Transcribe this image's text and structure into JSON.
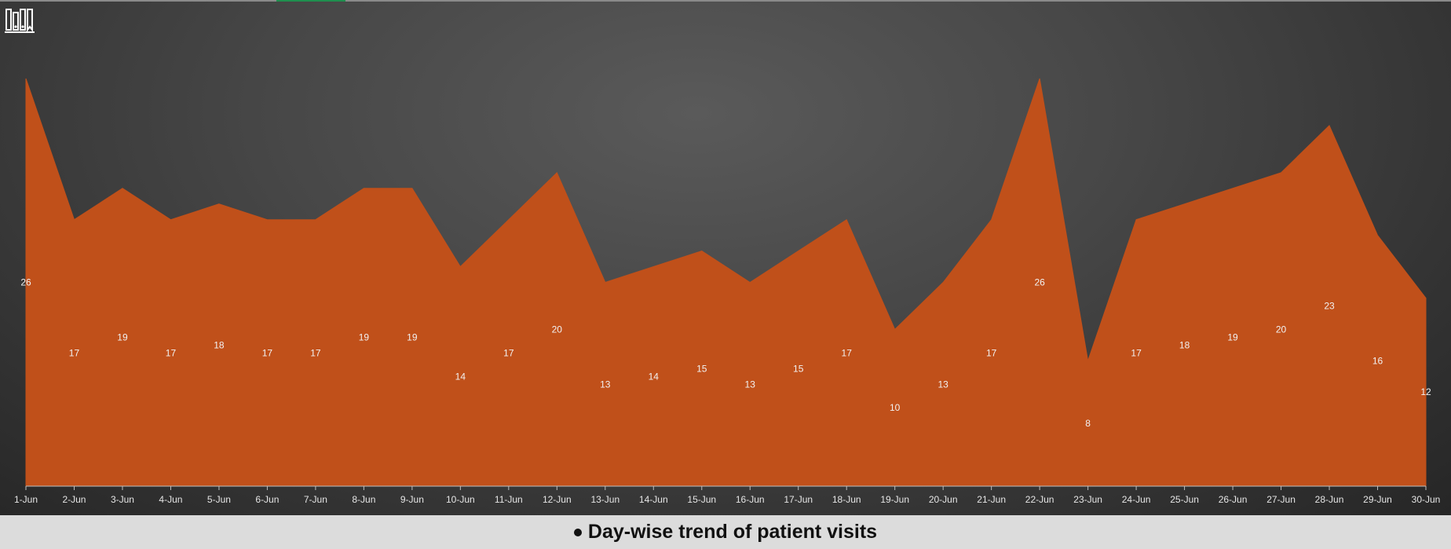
{
  "colors": {
    "area_fill": "#c0501a",
    "area_stroke": "#c0501a",
    "logo": "#ffffff",
    "accent_strip": "#1f8f4e"
  },
  "logo": {
    "icon": "books-icon"
  },
  "caption": "Day-wise trend of patient visits",
  "chart_data": {
    "type": "area",
    "title": "",
    "xlabel": "",
    "ylabel": "",
    "ylim": [
      0,
      26
    ],
    "grid": false,
    "legend": "none",
    "categories": [
      "1-Jun",
      "2-Jun",
      "3-Jun",
      "4-Jun",
      "5-Jun",
      "6-Jun",
      "7-Jun",
      "8-Jun",
      "9-Jun",
      "10-Jun",
      "11-Jun",
      "12-Jun",
      "13-Jun",
      "14-Jun",
      "15-Jun",
      "16-Jun",
      "17-Jun",
      "18-Jun",
      "19-Jun",
      "20-Jun",
      "21-Jun",
      "22-Jun",
      "23-Jun",
      "24-Jun",
      "25-Jun",
      "26-Jun",
      "27-Jun",
      "28-Jun",
      "29-Jun",
      "30-Jun"
    ],
    "values": [
      26,
      17,
      19,
      17,
      18,
      17,
      17,
      19,
      19,
      14,
      17,
      20,
      13,
      14,
      15,
      13,
      15,
      17,
      10,
      13,
      17,
      26,
      8,
      17,
      18,
      19,
      20,
      23,
      16,
      12
    ]
  }
}
